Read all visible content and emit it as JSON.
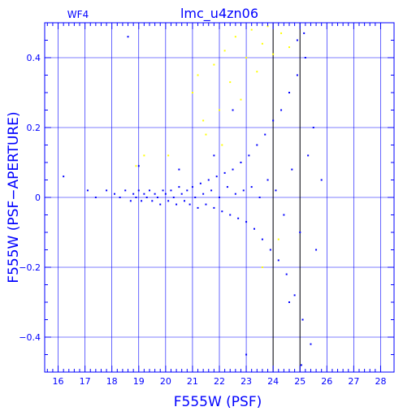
{
  "chart_data": {
    "type": "scatter",
    "title": "lmc_u4zn06",
    "corner_label": "WF4",
    "xlabel": "F555W (PSF)",
    "ylabel": "F555W (PSF−APERTURE)",
    "xlim": [
      15.5,
      28.5
    ],
    "ylim": [
      -0.5,
      0.5
    ],
    "xticks": [
      16,
      17,
      18,
      19,
      20,
      21,
      22,
      23,
      24,
      25,
      26,
      27,
      28
    ],
    "xtick_labels": [
      "16",
      "17",
      "18",
      "19",
      "20",
      "21",
      "22",
      "23",
      "24",
      "25",
      "26",
      "27",
      "28"
    ],
    "yticks": [
      -0.4,
      -0.2,
      0,
      0.2,
      0.4
    ],
    "ytick_labels": [
      "−0.4",
      "−0.2",
      "0",
      "0.2",
      "0.4"
    ],
    "vertical_lines": [
      24,
      25
    ],
    "grid": true,
    "legend": "none",
    "colors": {
      "frame": "#0000ff",
      "main_points": "#0000ff",
      "rejected_points": "#ffff00",
      "title": "#0000ff"
    },
    "series": [
      {
        "color": "#0000ff",
        "description_points": "dense horizontal stellar sequence near y=0 fanning out with magnitude",
        "points": [
          [
            16.2,
            0.06
          ],
          [
            17.1,
            0.02
          ],
          [
            17.4,
            0.0
          ],
          [
            17.8,
            0.02
          ],
          [
            18.1,
            0.01
          ],
          [
            18.3,
            0.0
          ],
          [
            18.5,
            0.02
          ],
          [
            18.7,
            -0.01
          ],
          [
            18.8,
            0.01
          ],
          [
            18.9,
            0.0
          ],
          [
            19.0,
            0.02
          ],
          [
            19.1,
            -0.01
          ],
          [
            19.2,
            0.01
          ],
          [
            19.3,
            0.0
          ],
          [
            19.4,
            0.02
          ],
          [
            19.5,
            -0.01
          ],
          [
            19.6,
            0.01
          ],
          [
            19.7,
            0.0
          ],
          [
            19.8,
            -0.02
          ],
          [
            19.9,
            0.02
          ],
          [
            20.0,
            0.01
          ],
          [
            20.1,
            -0.01
          ],
          [
            20.2,
            0.02
          ],
          [
            20.3,
            0.0
          ],
          [
            20.4,
            -0.02
          ],
          [
            20.5,
            0.03
          ],
          [
            20.6,
            0.01
          ],
          [
            20.7,
            -0.01
          ],
          [
            20.8,
            0.02
          ],
          [
            20.9,
            -0.02
          ],
          [
            21.0,
            0.03
          ],
          [
            21.1,
            0.0
          ],
          [
            21.2,
            -0.03
          ],
          [
            21.3,
            0.04
          ],
          [
            21.4,
            0.01
          ],
          [
            21.5,
            -0.02
          ],
          [
            21.6,
            0.05
          ],
          [
            21.7,
            0.02
          ],
          [
            21.8,
            -0.03
          ],
          [
            21.9,
            0.06
          ],
          [
            22.0,
            0.0
          ],
          [
            22.1,
            -0.04
          ],
          [
            22.2,
            0.07
          ],
          [
            22.3,
            0.03
          ],
          [
            22.4,
            -0.05
          ],
          [
            22.5,
            0.08
          ],
          [
            22.6,
            0.01
          ],
          [
            22.7,
            -0.06
          ],
          [
            22.8,
            0.1
          ],
          [
            22.9,
            0.02
          ],
          [
            23.0,
            -0.07
          ],
          [
            23.1,
            0.12
          ],
          [
            23.2,
            0.03
          ],
          [
            23.3,
            -0.09
          ],
          [
            23.4,
            0.15
          ],
          [
            23.5,
            0.0
          ],
          [
            23.6,
            -0.12
          ],
          [
            23.7,
            0.18
          ],
          [
            23.8,
            0.05
          ],
          [
            23.9,
            -0.15
          ],
          [
            24.0,
            0.22
          ],
          [
            24.1,
            0.02
          ],
          [
            24.2,
            -0.18
          ],
          [
            24.3,
            0.25
          ],
          [
            24.4,
            -0.05
          ],
          [
            24.5,
            -0.22
          ],
          [
            24.6,
            0.3
          ],
          [
            24.7,
            0.08
          ],
          [
            24.8,
            -0.28
          ],
          [
            24.9,
            0.35
          ],
          [
            25.0,
            -0.1
          ],
          [
            25.1,
            -0.35
          ],
          [
            25.2,
            0.4
          ],
          [
            25.3,
            0.12
          ],
          [
            25.4,
            -0.42
          ],
          [
            25.5,
            0.2
          ],
          [
            25.6,
            -0.15
          ],
          [
            25.8,
            0.05
          ],
          [
            24.9,
            0.45
          ],
          [
            25.05,
            -0.48
          ],
          [
            25.15,
            0.47
          ],
          [
            24.6,
            -0.3
          ],
          [
            23.0,
            -0.45
          ],
          [
            22.5,
            0.25
          ],
          [
            21.8,
            0.12
          ],
          [
            20.5,
            0.08
          ],
          [
            19.0,
            0.09
          ],
          [
            18.6,
            0.46
          ]
        ]
      },
      {
        "color": "#ffff00",
        "description_points": "rejected faint/deviant objects above the sequence",
        "points": [
          [
            20.1,
            0.12
          ],
          [
            21.0,
            0.3
          ],
          [
            21.2,
            0.35
          ],
          [
            21.5,
            0.18
          ],
          [
            21.8,
            0.38
          ],
          [
            22.0,
            0.25
          ],
          [
            22.2,
            0.42
          ],
          [
            22.4,
            0.33
          ],
          [
            22.6,
            0.46
          ],
          [
            22.8,
            0.28
          ],
          [
            23.0,
            0.4
          ],
          [
            23.2,
            0.48
          ],
          [
            23.4,
            0.36
          ],
          [
            23.6,
            0.44
          ],
          [
            23.8,
            0.49
          ],
          [
            24.0,
            0.41
          ],
          [
            24.3,
            0.47
          ],
          [
            24.6,
            0.43
          ],
          [
            21.4,
            0.22
          ],
          [
            22.1,
            0.15
          ],
          [
            19.2,
            0.12
          ],
          [
            18.9,
            0.09
          ],
          [
            24.2,
            -0.12
          ],
          [
            23.6,
            -0.2
          ]
        ]
      }
    ]
  }
}
